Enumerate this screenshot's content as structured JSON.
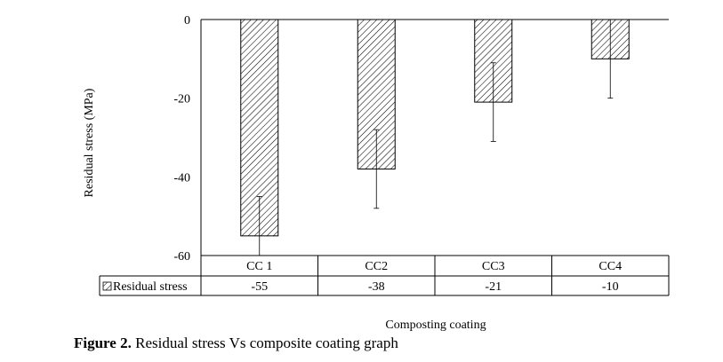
{
  "chart_data": {
    "type": "bar",
    "categories": [
      "CC 1",
      "CC2",
      "CC3",
      "CC4"
    ],
    "series": [
      {
        "name": "Residual stress",
        "values": [
          -55,
          -38,
          -21,
          -10
        ],
        "error_bars": [
          10,
          10,
          10,
          10
        ]
      }
    ],
    "table_values": [
      "-55",
      "-38",
      "-21",
      "-10"
    ],
    "ylabel": "Residual stress (MPa)",
    "xlabel": "Composting coating",
    "ylim": [
      -60,
      0
    ],
    "yticks": [
      0,
      -20,
      -40,
      -60
    ],
    "ytick_labels": [
      "0",
      "-20",
      "-40",
      "-60"
    ],
    "bar_pattern": "diagonal-hatch",
    "data_table": true,
    "grid": false
  },
  "caption": {
    "label": "Figure 2.",
    "text": " Residual stress Vs composite coating graph"
  }
}
